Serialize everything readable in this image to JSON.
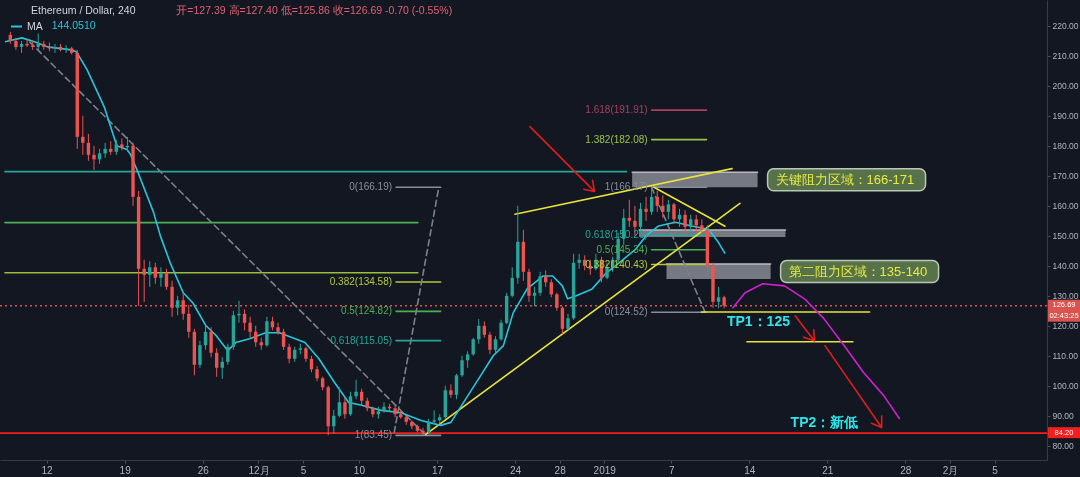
{
  "chart_data": {
    "type": "candlestick",
    "title": "Ethereum / Dollar, 240",
    "subtitle": "开=127.39 高=127.40 低=125.86 收=126.69 -0.70 (-0.55%)",
    "x": [
      "2018-11-08T18:00",
      "2018-11-09T06:00",
      "2018-11-09T18:00",
      "2018-11-10T06:00",
      "2018-11-10T18:00",
      "2018-11-11T06:00",
      "2018-11-11T18:00",
      "2018-11-12T06:00",
      "2018-11-12T18:00",
      "2018-11-13T06:00",
      "2018-11-13T18:00",
      "2018-11-14T06:00",
      "2018-11-14T18:00",
      "2018-11-15T06:00",
      "2018-11-15T18:00",
      "2018-11-16T06:00",
      "2018-11-16T18:00",
      "2018-11-17T06:00",
      "2018-11-17T18:00",
      "2018-11-18T06:00",
      "2018-11-18T18:00",
      "2018-11-19T06:00",
      "2018-11-19T18:00",
      "2018-11-20T06:00",
      "2018-11-20T18:00",
      "2018-11-21T06:00",
      "2018-11-21T18:00",
      "2018-11-22T06:00",
      "2018-11-22T18:00",
      "2018-11-23T06:00",
      "2018-11-23T18:00",
      "2018-11-24T06:00",
      "2018-11-24T18:00",
      "2018-11-25T06:00",
      "2018-11-25T18:00",
      "2018-11-26T06:00",
      "2018-11-26T18:00",
      "2018-11-27T06:00",
      "2018-11-27T18:00",
      "2018-11-28T06:00",
      "2018-11-28T18:00",
      "2018-11-29T06:00",
      "2018-11-29T18:00",
      "2018-11-30T06:00",
      "2018-11-30T18:00",
      "2018-12-01T06:00",
      "2018-12-01T18:00",
      "2018-12-02T06:00",
      "2018-12-02T18:00",
      "2018-12-03T06:00",
      "2018-12-03T18:00",
      "2018-12-04T06:00",
      "2018-12-04T18:00",
      "2018-12-05T06:00",
      "2018-12-05T18:00",
      "2018-12-06T06:00",
      "2018-12-06T18:00",
      "2018-12-07T06:00",
      "2018-12-07T18:00",
      "2018-12-08T06:00",
      "2018-12-08T18:00",
      "2018-12-09T06:00",
      "2018-12-09T18:00",
      "2018-12-10T06:00",
      "2018-12-10T18:00",
      "2018-12-11T06:00",
      "2018-12-11T18:00",
      "2018-12-12T06:00",
      "2018-12-12T18:00",
      "2018-12-13T06:00",
      "2018-12-13T18:00",
      "2018-12-14T06:00",
      "2018-12-14T18:00",
      "2018-12-15T06:00",
      "2018-12-15T18:00",
      "2018-12-16T06:00",
      "2018-12-16T18:00",
      "2018-12-17T06:00",
      "2018-12-17T18:00",
      "2018-12-18T06:00",
      "2018-12-18T18:00",
      "2018-12-19T06:00",
      "2018-12-19T18:00",
      "2018-12-20T06:00",
      "2018-12-20T18:00",
      "2018-12-21T06:00",
      "2018-12-21T18:00",
      "2018-12-22T06:00",
      "2018-12-22T18:00",
      "2018-12-23T06:00",
      "2018-12-23T18:00",
      "2018-12-24T06:00",
      "2018-12-24T18:00",
      "2018-12-25T06:00",
      "2018-12-25T18:00",
      "2018-12-26T06:00",
      "2018-12-26T18:00",
      "2018-12-27T06:00",
      "2018-12-27T18:00",
      "2018-12-28T06:00",
      "2018-12-28T18:00",
      "2018-12-29T06:00",
      "2018-12-29T18:00",
      "2018-12-30T06:00",
      "2018-12-30T18:00",
      "2018-12-31T06:00",
      "2018-12-31T18:00",
      "2019-01-01T06:00",
      "2019-01-01T18:00",
      "2019-01-02T06:00",
      "2019-01-02T18:00",
      "2019-01-03T06:00",
      "2019-01-03T18:00",
      "2019-01-04T06:00",
      "2019-01-04T18:00",
      "2019-01-05T06:00",
      "2019-01-05T18:00",
      "2019-01-06T06:00",
      "2019-01-06T18:00",
      "2019-01-07T06:00",
      "2019-01-07T18:00",
      "2019-01-08T06:00",
      "2019-01-08T18:00",
      "2019-01-09T06:00",
      "2019-01-09T18:00",
      "2019-01-10T06:00",
      "2019-01-10T18:00",
      "2019-01-11T06:00",
      "2019-01-11T18:00"
    ],
    "ohlc": [
      [
        217,
        218,
        214,
        215
      ],
      [
        215,
        216,
        212,
        213
      ],
      [
        213,
        215,
        211,
        214
      ],
      [
        214,
        215.5,
        213,
        213.5
      ],
      [
        213.5,
        215,
        212,
        213
      ],
      [
        213,
        217.5,
        212,
        214
      ],
      [
        214,
        215,
        212,
        213
      ],
      [
        213,
        214.5,
        211.5,
        212.5
      ],
      [
        212.5,
        214,
        211,
        213
      ],
      [
        213,
        214,
        211.5,
        212
      ],
      [
        212,
        213.5,
        211,
        212.5
      ],
      [
        212.5,
        213,
        210.5,
        211
      ],
      [
        211,
        212,
        179,
        183
      ],
      [
        183,
        190,
        177,
        181
      ],
      [
        181,
        184,
        175,
        177
      ],
      [
        177,
        180,
        172,
        175.5
      ],
      [
        175.5,
        179,
        174,
        177.5
      ],
      [
        177.5,
        181,
        176,
        179
      ],
      [
        179,
        181.5,
        177,
        178
      ],
      [
        178,
        182,
        177,
        180.5
      ],
      [
        180.5,
        182.5,
        178.5,
        179.5
      ],
      [
        179.5,
        183,
        178,
        180
      ],
      [
        180,
        181,
        160,
        163
      ],
      [
        163,
        165,
        126.6,
        139
      ],
      [
        139,
        142,
        128,
        137
      ],
      [
        137,
        141.5,
        133,
        139.5
      ],
      [
        139.5,
        141,
        134,
        136
      ],
      [
        136,
        139.5,
        133,
        137.5
      ],
      [
        137.5,
        139,
        132,
        133
      ],
      [
        133,
        135,
        123,
        126
      ],
      [
        126,
        130,
        123.5,
        128.5
      ],
      [
        128.5,
        131,
        122,
        124
      ],
      [
        124,
        127,
        116,
        118
      ],
      [
        118,
        119,
        103.5,
        107
      ],
      [
        107,
        115,
        106,
        113.5
      ],
      [
        113.5,
        120,
        112,
        118
      ],
      [
        118,
        119.5,
        109.5,
        111
      ],
      [
        111,
        112.5,
        103,
        106
      ],
      [
        106,
        109.5,
        102.3,
        108
      ],
      [
        108,
        114,
        107,
        113
      ],
      [
        113,
        125,
        112,
        123.5
      ],
      [
        123.5,
        128.3,
        121,
        124
      ],
      [
        124,
        125.5,
        118.5,
        121
      ],
      [
        121,
        123,
        116,
        118
      ],
      [
        118,
        120,
        113,
        114.5
      ],
      [
        114.5,
        116,
        112,
        113.5
      ],
      [
        113.5,
        123,
        113,
        121.5
      ],
      [
        121.5,
        123,
        118.5,
        119.5
      ],
      [
        119.5,
        121,
        117,
        118
      ],
      [
        118,
        119,
        112,
        113
      ],
      [
        113,
        114,
        107.5,
        109
      ],
      [
        109,
        113,
        108,
        112
      ],
      [
        112,
        114,
        110.5,
        112.5
      ],
      [
        112.5,
        113,
        108,
        109
      ],
      [
        109,
        110,
        104.5,
        105.5
      ],
      [
        105.5,
        106.5,
        101.5,
        102.5
      ],
      [
        102.5,
        103,
        98.5,
        99.5
      ],
      [
        99.5,
        100,
        83.5,
        86.5
      ],
      [
        86.5,
        92,
        84,
        90
      ],
      [
        90,
        99.5,
        89.5,
        94.5
      ],
      [
        94.5,
        96,
        89,
        90.5
      ],
      [
        90.5,
        98,
        90,
        96.5
      ],
      [
        96.5,
        102,
        95.5,
        98
      ],
      [
        98,
        99,
        93.5,
        95
      ],
      [
        95,
        96,
        91.5,
        92.5
      ],
      [
        92.5,
        93,
        89.5,
        90.5
      ],
      [
        90.5,
        93,
        89,
        91.5
      ],
      [
        91.5,
        94.5,
        91,
        93
      ],
      [
        93,
        94,
        91.5,
        92.5
      ],
      [
        92.5,
        93.5,
        89.5,
        90.5
      ],
      [
        90.5,
        92,
        89,
        89.5
      ],
      [
        89.5,
        90,
        87,
        88
      ],
      [
        88,
        88.5,
        85.5,
        86.5
      ],
      [
        86.5,
        87,
        84.5,
        85
      ],
      [
        85,
        86,
        83.45,
        84.5
      ],
      [
        84.5,
        89,
        84,
        88
      ],
      [
        88,
        91.8,
        87,
        88.5
      ],
      [
        88.5,
        90.5,
        87.5,
        89.5
      ],
      [
        89.5,
        100,
        89,
        98.5
      ],
      [
        98.5,
        100.5,
        96,
        97
      ],
      [
        97,
        104,
        95.5,
        103.5
      ],
      [
        103.5,
        110,
        103,
        108.5
      ],
      [
        108.5,
        111.5,
        106,
        110.5
      ],
      [
        110.5,
        116,
        110,
        115.5
      ],
      [
        115.5,
        122.3,
        114,
        120
      ],
      [
        120,
        121.5,
        116,
        117
      ],
      [
        117,
        118,
        110.5,
        112
      ],
      [
        112,
        116.5,
        111,
        115.5
      ],
      [
        115.5,
        122,
        115,
        121
      ],
      [
        121,
        131,
        120.5,
        130
      ],
      [
        130,
        139.5,
        129.5,
        136
      ],
      [
        136,
        160,
        134,
        148
      ],
      [
        148,
        152,
        135,
        138
      ],
      [
        138,
        139,
        128,
        130
      ],
      [
        130,
        133,
        126.5,
        131
      ],
      [
        131,
        138,
        130,
        136.5
      ],
      [
        136.5,
        138.5,
        133,
        134.5
      ],
      [
        134.5,
        135.5,
        129.5,
        130.5
      ],
      [
        130.5,
        131,
        125,
        126
      ],
      [
        126,
        126.5,
        117.3,
        119
      ],
      [
        119,
        124,
        118.5,
        122.5
      ],
      [
        122.5,
        144,
        122,
        141
      ],
      [
        141,
        144,
        139,
        142
      ],
      [
        142,
        143.5,
        138.5,
        140
      ],
      [
        140,
        142,
        137,
        139
      ],
      [
        139,
        144,
        138.5,
        142
      ],
      [
        142,
        143,
        134.5,
        136
      ],
      [
        136,
        141,
        135.5,
        139.5
      ],
      [
        139.5,
        143,
        138,
        142
      ],
      [
        142,
        151,
        141,
        149
      ],
      [
        149,
        159,
        147,
        156
      ],
      [
        156,
        162,
        153,
        155
      ],
      [
        155,
        160,
        150,
        153
      ],
      [
        153,
        161,
        152,
        159
      ],
      [
        159,
        163,
        155,
        158
      ],
      [
        158,
        166.17,
        157,
        163
      ],
      [
        163,
        165,
        158,
        160
      ],
      [
        160,
        163.5,
        156,
        158
      ],
      [
        158,
        162,
        155.5,
        160.5
      ],
      [
        160.5,
        161,
        154,
        155.5
      ],
      [
        155.5,
        159,
        153,
        157
      ],
      [
        157,
        158.5,
        151,
        153
      ],
      [
        153,
        157,
        151.5,
        155.5
      ],
      [
        155.5,
        157,
        151,
        153.5
      ],
      [
        153.5,
        155.5,
        151,
        152
      ],
      [
        152,
        153.5,
        138,
        140
      ],
      [
        140,
        141,
        126,
        128
      ],
      [
        128,
        133,
        125.86,
        129.5
      ],
      [
        129.5,
        130,
        125.86,
        126.69
      ]
    ],
    "colors": [
      "#ef5350",
      "#ef5350",
      "#26a69a",
      "#ef5350",
      "#ef5350",
      "#26a69a",
      "#ef5350",
      "#ef5350",
      "#26a69a",
      "#ef5350",
      "#26a69a",
      "#ef5350",
      "#ef5350",
      "#ef5350",
      "#ef5350",
      "#ef5350",
      "#26a69a",
      "#26a69a",
      "#ef5350",
      "#26a69a",
      "#ef5350",
      "#26a69a",
      "#ef5350",
      "#ef5350",
      "#ef5350",
      "#26a69a",
      "#ef5350",
      "#26a69a",
      "#ef5350",
      "#ef5350",
      "#26a69a",
      "#ef5350",
      "#ef5350",
      "#ef5350",
      "#26a69a",
      "#26a69a",
      "#ef5350",
      "#ef5350",
      "#26a69a",
      "#26a69a",
      "#26a69a",
      "#26a69a",
      "#ef5350",
      "#ef5350",
      "#ef5350",
      "#ef5350",
      "#26a69a",
      "#ef5350",
      "#ef5350",
      "#ef5350",
      "#ef5350",
      "#26a69a",
      "#26a69a",
      "#ef5350",
      "#ef5350",
      "#ef5350",
      "#ef5350",
      "#ef5350",
      "#26a69a",
      "#26a69a",
      "#ef5350",
      "#26a69a",
      "#26a69a",
      "#ef5350",
      "#ef5350",
      "#ef5350",
      "#26a69a",
      "#26a69a",
      "#ef5350",
      "#ef5350",
      "#ef5350",
      "#ef5350",
      "#ef5350",
      "#ef5350",
      "#ef5350",
      "#26a69a",
      "#26a69a",
      "#26a69a",
      "#26a69a",
      "#ef5350",
      "#26a69a",
      "#26a69a",
      "#26a69a",
      "#26a69a",
      "#26a69a",
      "#ef5350",
      "#ef5350",
      "#26a69a",
      "#26a69a",
      "#26a69a",
      "#26a69a",
      "#26a69a",
      "#ef5350",
      "#ef5350",
      "#26a69a",
      "#26a69a",
      "#ef5350",
      "#ef5350",
      "#ef5350",
      "#ef5350",
      "#26a69a",
      "#26a69a",
      "#26a69a",
      "#ef5350",
      "#ef5350",
      "#26a69a",
      "#ef5350",
      "#26a69a",
      "#26a69a",
      "#26a69a",
      "#26a69a",
      "#ef5350",
      "#ef5350",
      "#26a69a",
      "#ef5350",
      "#26a69a",
      "#ef5350",
      "#ef5350",
      "#26a69a",
      "#ef5350",
      "#26a69a",
      "#ef5350",
      "#26a69a",
      "#ef5350",
      "#ef5350",
      "#ef5350",
      "#ef5350",
      "#26a69a",
      "#ef5350"
    ],
    "series": [
      {
        "type": "line",
        "name": "关键阻力区域：166-171",
        "color": "#b8bbc2",
        "x": [
          "2019-01-03T12:00",
          "2019-01-14T18:00"
        ],
        "values": [
          171.2,
          171.2
        ],
        "lower": [
          166.2,
          166.2
        ],
        "upper": [
          171.2,
          171.2
        ]
      },
      {
        "type": "line",
        "color": "#b8bbc2",
        "x": [
          "2019-01-04T03:00",
          "2019-01-17T06:00"
        ],
        "values": [
          151.9,
          151.9
        ],
        "lower": [
          149.6,
          149.6
        ],
        "upper": [
          151.9,
          151.9
        ]
      },
      {
        "type": "line",
        "name": "第二阻力区域：135-140",
        "color": "#b8bbc2",
        "x": [
          "2019-01-06T14:00",
          "2019-01-15T22:00"
        ],
        "values": [
          140.6,
          140.6
        ],
        "lower": [
          135.6,
          135.6
        ],
        "upper": [
          140.6,
          140.6
        ]
      },
      {
        "type": "line",
        "color": "#26a69a",
        "x": [
          "2018-11-08T06:30",
          "2019-01-03T00:00"
        ],
        "values": [
          171.4,
          171.4
        ]
      },
      {
        "type": "line",
        "color": "#4caf50",
        "x": [
          "2018-11-08T06:30",
          "2018-12-15T07:00"
        ],
        "values": [
          154.4,
          154.4
        ]
      },
      {
        "type": "line",
        "color": "#9bbd3a",
        "x": [
          "2018-11-08T06:30",
          "2018-12-15T07:00"
        ],
        "values": [
          137.7,
          137.7
        ]
      },
      {
        "type": "line",
        "name": "0(166.19)",
        "color": "#8a8e99",
        "x": [
          "2018-12-13T08:00",
          "2018-12-17T08:00"
        ],
        "values": [
          166.19,
          166.19
        ]
      },
      {
        "type": "line",
        "name": "0.382(134.58)",
        "color": "#b3c73a",
        "x": [
          "2018-12-13T08:00",
          "2018-12-17T08:00"
        ],
        "values": [
          134.58,
          134.58
        ]
      },
      {
        "type": "line",
        "name": "0.5(124.82)",
        "color": "#4caf50",
        "x": [
          "2018-12-13T08:00",
          "2018-12-17T08:00"
        ],
        "values": [
          124.82,
          124.82
        ]
      },
      {
        "type": "line",
        "name": "0.618(115.05)",
        "color": "#26a69a",
        "x": [
          "2018-12-13T08:00",
          "2018-12-17T08:00"
        ],
        "values": [
          115.05,
          115.05
        ]
      },
      {
        "type": "line",
        "name": "1(83.45)",
        "color": "#8a8e99",
        "x": [
          "2018-12-13T08:00",
          "2018-12-17T08:00"
        ],
        "values": [
          83.45,
          83.45
        ]
      },
      {
        "type": "line",
        "name": "1.618(191.91)",
        "color": "#a8405e",
        "x": [
          "2019-01-05T06:00",
          "2019-01-10T04:00"
        ],
        "values": [
          191.91,
          191.91
        ]
      },
      {
        "type": "line",
        "name": "1.382(182.08)",
        "color": "#9bc34a",
        "x": [
          "2019-01-05T06:00",
          "2019-01-10T04:00"
        ],
        "values": [
          182.08,
          182.08
        ]
      },
      {
        "type": "line",
        "name": "1(166.17)",
        "color": "#8a8e99",
        "x": [
          "2019-01-05T06:00",
          "2019-01-10T04:00"
        ],
        "values": [
          166.17,
          166.17
        ]
      },
      {
        "type": "line",
        "name": "0.618(150.26)",
        "color": "#26a69a",
        "x": [
          "2019-01-05T06:00",
          "2019-01-10T04:00"
        ],
        "values": [
          150.26,
          150.26
        ]
      },
      {
        "type": "line",
        "name": "0.5(145.34)",
        "color": "#4caf50",
        "x": [
          "2019-01-05T06:00",
          "2019-01-10T04:00"
        ],
        "values": [
          145.34,
          145.34
        ]
      },
      {
        "type": "line",
        "name": "0.382(140.43)",
        "color": "#b3c73a",
        "x": [
          "2019-01-05T06:00",
          "2019-01-10T04:00"
        ],
        "values": [
          140.43,
          140.43
        ]
      },
      {
        "type": "line",
        "name": "0(124.52)",
        "color": "#8a8e99",
        "x": [
          "2019-01-05T06:00",
          "2019-01-10T04:00"
        ],
        "values": [
          124.52,
          124.52
        ]
      },
      {
        "type": "line",
        "color": "#7d818c",
        "line_style": "dashed",
        "x": [
          "2018-11-10T12:00",
          "2018-12-16T00:00"
        ],
        "values": [
          214.6,
          83.5
        ]
      },
      {
        "type": "line",
        "color": "#7d818c",
        "line_style": "dashed",
        "x": [
          "2018-12-13T04:00",
          "2018-12-17T04:00"
        ],
        "values": [
          84.4,
          166.2
        ]
      },
      {
        "type": "line",
        "color": "#7d818c",
        "line_style": "dashed",
        "x": [
          "2019-01-05T06:00",
          "2019-01-10T01:00"
        ],
        "values": [
          166.17,
          124.52
        ]
      },
      {
        "type": "line",
        "color": "#e8e33a",
        "x": [
          "2018-12-16T00:00",
          "2019-01-13T04:00"
        ],
        "values": [
          83.8,
          160.8
        ]
      },
      {
        "type": "line",
        "color": "#e8e33a",
        "x": [
          "2018-12-24T00:00",
          "2019-01-12T11:00"
        ],
        "values": [
          157.2,
          172.4
        ]
      },
      {
        "type": "line",
        "color": "#e8e33a",
        "x": [
          "2019-01-05T11:00",
          "2019-01-11T20:00"
        ],
        "values": [
          166.2,
          153.2
        ]
      },
      {
        "type": "line",
        "color": "#e8e33a",
        "x": [
          "2019-01-09T17:00",
          "2019-01-24T19:00"
        ],
        "values": [
          124.6,
          124.6
        ]
      },
      {
        "type": "line",
        "color": "#e8e33a",
        "x": [
          "2019-01-13T19:00",
          "2019-01-23T07:00"
        ],
        "values": [
          114.7,
          114.7
        ]
      },
      {
        "type": "line",
        "name": "MA",
        "color": "#29c5db",
        "x": [
          "2018-11-08T06:30",
          "2018-11-09T19:00",
          "2018-11-10T22:00",
          "2018-11-12T02:00",
          "2018-11-14T05:00",
          "2018-11-14T16:00",
          "2018-11-15T15:00",
          "2018-11-17T04:00",
          "2018-11-18T07:00",
          "2018-11-19T05:00",
          "2018-11-19T13:00",
          "2018-11-20T02:00",
          "2018-11-21T14:00",
          "2018-11-22T05:00",
          "2018-11-23T02:00",
          "2018-11-24T06:00",
          "2018-11-25T03:00",
          "2018-11-26T07:00",
          "2018-11-27T05:00",
          "2018-11-28T06:00",
          "2018-11-28T23:00",
          "2018-11-30T05:00",
          "2018-12-01T15:00",
          "2018-12-02T21:00",
          "2018-12-04T07:00",
          "2018-12-05T04:00",
          "2018-12-06T10:00",
          "2018-12-07T20:00",
          "2018-12-09T02:00",
          "2018-12-10T06:00",
          "2018-12-12T00:00",
          "2018-12-13T19:00",
          "2018-12-15T14:00",
          "2018-12-17T08:00",
          "2018-12-18T06:00",
          "2018-12-19T09:00",
          "2018-12-20T22:00",
          "2018-12-22T01:00",
          "2018-12-22T23:00",
          "2018-12-23T20:00",
          "2018-12-25T02:00",
          "2018-12-26T12:00",
          "2018-12-27T09:00",
          "2018-12-28T06:00",
          "2018-12-28T17:00",
          "2018-12-29T12:00",
          "2018-12-30T22:00",
          "2019-01-01T04:00",
          "2019-01-02T08:00",
          "2019-01-03T20:00",
          "2019-01-04T18:00",
          "2019-01-05T21:00",
          "2019-01-07T09:00",
          "2019-01-08T20:00",
          "2019-01-10T08:00",
          "2019-01-11T05:00",
          "2019-01-11T20:00"
        ],
        "values": [
          214.7,
          216,
          214.7,
          213,
          212,
          211.4,
          205.4,
          193,
          180,
          178.8,
          177,
          172.2,
          157.9,
          149.9,
          141,
          131,
          127.6,
          120,
          116.7,
          111.7,
          114.4,
          115.7,
          117.7,
          117.7,
          115.7,
          114.4,
          109,
          101,
          94.4,
          93.5,
          91.8,
          91,
          88.4,
          86.8,
          87.8,
          94.4,
          103.4,
          110,
          113.4,
          124.3,
          132.3,
          136.6,
          136.6,
          133.3,
          129,
          130,
          132.3,
          137.6,
          141,
          145.6,
          150,
          153.3,
          154.5,
          153.3,
          152.2,
          148,
          144.05
        ]
      },
      {
        "type": "line",
        "color": "#e21d1d",
        "x": [
          "2018-12-25T08:00",
          "2018-12-31T03:00",
          "2018-12-30T23:00",
          "2018-12-31T03:00",
          "2018-12-30T04:00"
        ],
        "values": [
          186.4,
          164.8,
          168.5,
          164.8,
          165.5
        ]
      },
      {
        "type": "line",
        "color": "#e21d1d",
        "x": [
          "2019-01-18T03:00",
          "2019-01-19T20:00",
          "2019-01-19T19:00",
          "2019-01-19T20:00",
          "2019-01-18T21:00"
        ],
        "values": [
          123.3,
          115.0,
          118.7,
          115.0,
          116.2
        ]
      },
      {
        "type": "line",
        "color": "#e21d1d",
        "x": [
          "2019-01-20T19:00",
          "2019-01-25T21:00",
          "2019-01-25T21:00",
          "2019-01-25T21:00",
          "2019-01-24T23:00"
        ],
        "values": [
          113.4,
          86.1,
          89.9,
          86.1,
          87.5
        ]
      },
      {
        "type": "line",
        "color": "#d020d0",
        "x": [
          "2019-01-12T13:00",
          "2019-01-13T15:00",
          "2019-01-15T05:00",
          "2019-01-17T04:00",
          "2019-01-18T23:00",
          "2019-01-20T17:00",
          "2019-01-22T12:00",
          "2019-01-24T06:00",
          "2019-01-26T01:00",
          "2019-01-27T11:00"
        ],
        "values": [
          126.0,
          131.0,
          134.0,
          133.3,
          129.0,
          122.3,
          113.4,
          104.4,
          96.8,
          89.1
        ]
      }
    ],
    "xlim": [
      "2018-11-08T06:30",
      "2019-02-09T06:00"
    ],
    "xticks": [
      {
        "value": "2018-11-12",
        "label": "12"
      },
      {
        "value": "2018-11-19",
        "label": "19"
      },
      {
        "value": "2018-11-26",
        "label": "26"
      },
      {
        "value": "2018-12-01",
        "label": "12月"
      },
      {
        "value": "2018-12-05",
        "label": "5"
      },
      {
        "value": "2018-12-10",
        "label": "10"
      },
      {
        "value": "2018-12-17",
        "label": "17"
      },
      {
        "value": "2018-12-24",
        "label": "24"
      },
      {
        "value": "2018-12-28",
        "label": "28"
      },
      {
        "value": "2019-01-01",
        "label": "2019"
      },
      {
        "value": "2019-01-07",
        "label": "7"
      },
      {
        "value": "2019-01-14",
        "label": "14"
      },
      {
        "value": "2019-01-21",
        "label": "21"
      },
      {
        "value": "2019-01-28",
        "label": "28"
      },
      {
        "value": "2019-02-01",
        "label": "2月"
      },
      {
        "value": "2019-02-05",
        "label": "5"
      }
    ],
    "ylim": [
      75.25,
      228.63
    ],
    "yticks": [
      {
        "value": 80,
        "label": "80.00"
      },
      {
        "value": 90,
        "label": "90.00"
      },
      {
        "value": 100,
        "label": "100.00"
      },
      {
        "value": 110,
        "label": "110.00"
      },
      {
        "value": 120,
        "label": "120.00"
      },
      {
        "value": 130,
        "label": "130.00"
      },
      {
        "value": 140,
        "label": "140.00"
      },
      {
        "value": 150,
        "label": "150.00"
      },
      {
        "value": 160,
        "label": "160.00"
      },
      {
        "value": 170,
        "label": "170.00"
      },
      {
        "value": 180,
        "label": "180.00"
      },
      {
        "value": 190,
        "label": "190.00"
      },
      {
        "value": 200,
        "label": "200.00"
      },
      {
        "value": 210,
        "label": "210.00"
      },
      {
        "value": 220,
        "label": "220.00"
      }
    ],
    "ref_lines": [
      {
        "axis": "y",
        "value": 84.2,
        "label": "84.20",
        "color": "#f21f1f"
      },
      {
        "axis": "y",
        "value": 126.69,
        "label": "126.69\n02:43:25",
        "color": "#d9534f",
        "line_style": "dotted"
      }
    ],
    "annotations": [
      "144.0510",
      {
        "text": "TP1：125",
        "x": "2019-01-12T00:00",
        "y": 124.6
      },
      {
        "text": "TP2：新低",
        "x": "2019-01-17T17:00",
        "y": 84.2
      }
    ],
    "legend": "top left"
  }
}
